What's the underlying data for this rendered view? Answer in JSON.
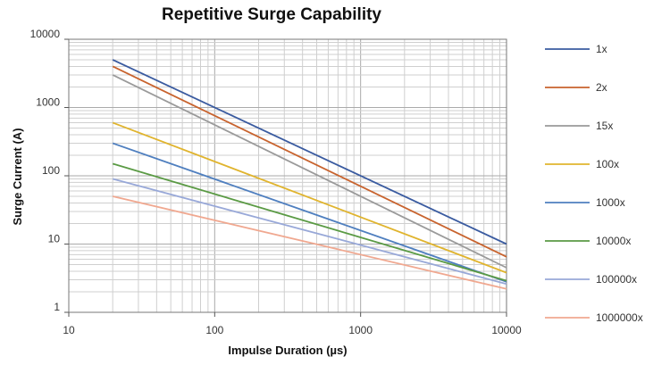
{
  "chart_data": {
    "type": "line",
    "title": "Repetitive Surge Capability",
    "xlabel": "Impulse Duration (µs)",
    "ylabel": "Surge Current (A)",
    "xscale": "log",
    "yscale": "log",
    "xlim": [
      10,
      10000
    ],
    "ylim": [
      1,
      10000
    ],
    "grid": true,
    "legend_position": "right",
    "x_ticks": [
      {
        "value": 10,
        "label": "10"
      },
      {
        "value": 100,
        "label": "100"
      },
      {
        "value": 1000,
        "label": "1000"
      },
      {
        "value": 10000,
        "label": "10000"
      }
    ],
    "y_ticks": [
      {
        "value": 1,
        "label": "1"
      },
      {
        "value": 10,
        "label": "10"
      },
      {
        "value": 100,
        "label": "100"
      },
      {
        "value": 1000,
        "label": "1000"
      },
      {
        "value": 10000,
        "label": "10000"
      }
    ],
    "series": [
      {
        "name": "1x",
        "color": "#3a5ba0",
        "x": [
          20,
          10000
        ],
        "y": [
          5000,
          10
        ]
      },
      {
        "name": "2x",
        "color": "#c8632e",
        "x": [
          20,
          10000
        ],
        "y": [
          4000,
          6.5
        ]
      },
      {
        "name": "15x",
        "color": "#9a9a9a",
        "x": [
          20,
          10000
        ],
        "y": [
          3000,
          4.5
        ]
      },
      {
        "name": "100x",
        "color": "#e0b42e",
        "x": [
          20,
          10000
        ],
        "y": [
          600,
          3.8
        ]
      },
      {
        "name": "1000x",
        "color": "#4f7fbf",
        "x": [
          20,
          10000
        ],
        "y": [
          300,
          2.8
        ]
      },
      {
        "name": "10000x",
        "color": "#5a9a44",
        "x": [
          20,
          10000
        ],
        "y": [
          150,
          2.9
        ]
      },
      {
        "name": "100000x",
        "color": "#98a8d8",
        "x": [
          20,
          10000
        ],
        "y": [
          90,
          2.6
        ]
      },
      {
        "name": "1000000x",
        "color": "#f0a890",
        "x": [
          20,
          10000
        ],
        "y": [
          50,
          2.2
        ]
      }
    ]
  }
}
